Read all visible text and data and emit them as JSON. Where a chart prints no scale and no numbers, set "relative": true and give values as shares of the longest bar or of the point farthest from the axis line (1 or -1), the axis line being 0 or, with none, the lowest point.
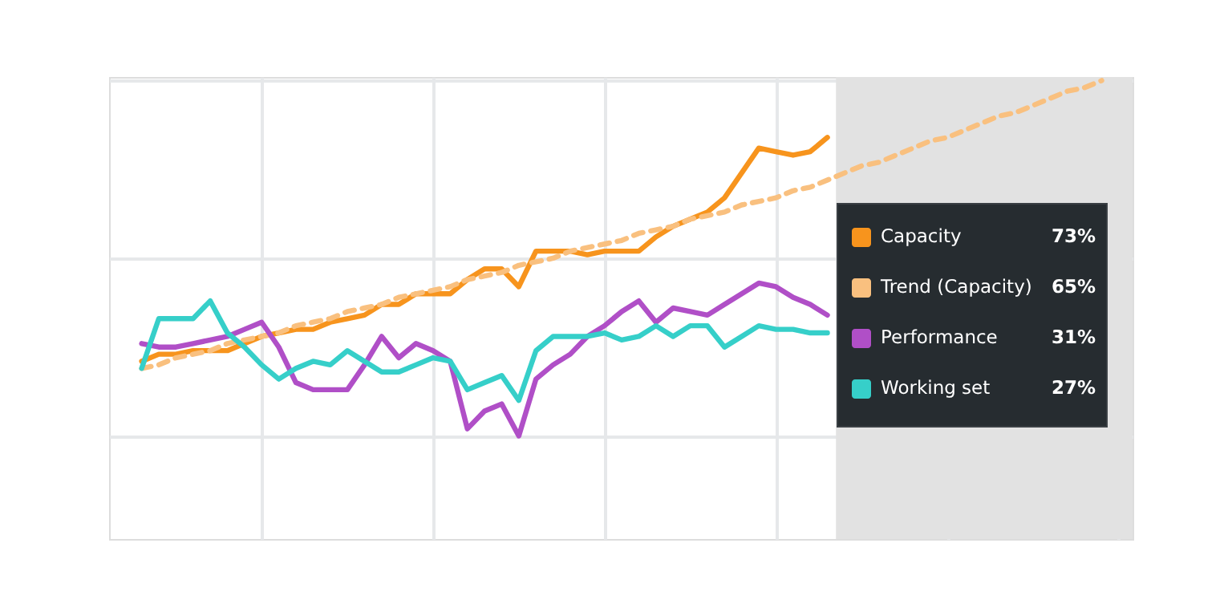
{
  "chart_data": {
    "type": "line",
    "relative": true,
    "grid": true,
    "tick_labels": false,
    "legend": "right",
    "categories": [
      null,
      null,
      null,
      null,
      null,
      null,
      null,
      null,
      null,
      null,
      null,
      null,
      null,
      null,
      null,
      null,
      null,
      null,
      null,
      null,
      null,
      null,
      null,
      null,
      null,
      null,
      null,
      null,
      null,
      null,
      null,
      null,
      null,
      null,
      null,
      null,
      null,
      null,
      null,
      null,
      null,
      null,
      null,
      null,
      null,
      null,
      null,
      null,
      null,
      null,
      null,
      null,
      null,
      null,
      null,
      null,
      null,
      null
    ],
    "series": [
      {
        "name": "Capacity",
        "color": "#f7941d",
        "line_style": "solid",
        "values": [
          0.21,
          0.23,
          0.23,
          0.24,
          0.24,
          0.24,
          0.26,
          0.28,
          0.29,
          0.3,
          0.3,
          0.32,
          0.33,
          0.34,
          0.37,
          0.37,
          0.4,
          0.4,
          0.4,
          0.44,
          0.47,
          0.47,
          0.42,
          0.52,
          0.52,
          0.52,
          0.51,
          0.52,
          0.52,
          0.52,
          0.56,
          0.59,
          0.61,
          0.63,
          0.67,
          0.74,
          0.81,
          0.8,
          0.79,
          0.8,
          0.84,
          null,
          null,
          null,
          null,
          null,
          null,
          null,
          null,
          null,
          null,
          null,
          null,
          null,
          null,
          null,
          null,
          null
        ]
      },
      {
        "name": "Trend (Capacity)",
        "color": "#f9c07f",
        "line_style": "dashed",
        "values": [
          0.19,
          0.2,
          0.22,
          0.23,
          0.24,
          0.26,
          0.27,
          0.28,
          0.29,
          0.31,
          0.32,
          0.33,
          0.35,
          0.36,
          0.37,
          0.39,
          0.4,
          0.41,
          0.42,
          0.44,
          0.45,
          0.46,
          0.48,
          0.49,
          0.5,
          0.52,
          0.53,
          0.54,
          0.55,
          0.57,
          0.58,
          0.59,
          0.61,
          0.62,
          0.63,
          0.65,
          0.66,
          0.67,
          0.69,
          0.7,
          0.72,
          0.74,
          0.76,
          0.77,
          0.79,
          0.81,
          0.83,
          0.84,
          0.86,
          0.88,
          0.9,
          0.91,
          0.93,
          0.95,
          0.97,
          0.98,
          1.0,
          null
        ]
      },
      {
        "name": "Performance",
        "color": "#b04fc7",
        "line_style": "solid",
        "values": [
          0.26,
          0.25,
          0.25,
          0.26,
          0.27,
          0.28,
          0.3,
          0.32,
          0.25,
          0.15,
          0.13,
          0.13,
          0.13,
          0.2,
          0.28,
          0.22,
          0.26,
          0.24,
          0.21,
          0.02,
          0.07,
          0.09,
          0,
          0.16,
          0.2,
          0.23,
          0.28,
          0.31,
          0.35,
          0.38,
          0.32,
          0.36,
          0.35,
          0.34,
          0.37,
          0.4,
          0.43,
          0.42,
          0.39,
          0.37,
          0.34,
          null,
          null,
          null,
          null,
          null,
          null,
          null,
          null,
          null,
          null,
          null,
          null,
          null,
          null,
          null,
          null,
          null
        ]
      },
      {
        "name": "Working set",
        "color": "#36cfc9",
        "line_style": "solid",
        "values": [
          0.19,
          0.33,
          0.33,
          0.33,
          0.38,
          0.29,
          0.25,
          0.2,
          0.16,
          0.19,
          0.21,
          0.2,
          0.24,
          0.21,
          0.18,
          0.18,
          0.2,
          0.22,
          0.21,
          0.13,
          0.15,
          0.17,
          0.1,
          0.24,
          0.28,
          0.28,
          0.28,
          0.29,
          0.27,
          0.28,
          0.31,
          0.28,
          0.31,
          0.31,
          0.25,
          0.28,
          0.31,
          0.3,
          0.3,
          0.29,
          0.29,
          null,
          null,
          null,
          null,
          null,
          null,
          null,
          null,
          null,
          null,
          null,
          null,
          null,
          null,
          null,
          null,
          null
        ]
      }
    ],
    "annotations": [
      "73%",
      "65%",
      "31%",
      "27%"
    ]
  }
}
